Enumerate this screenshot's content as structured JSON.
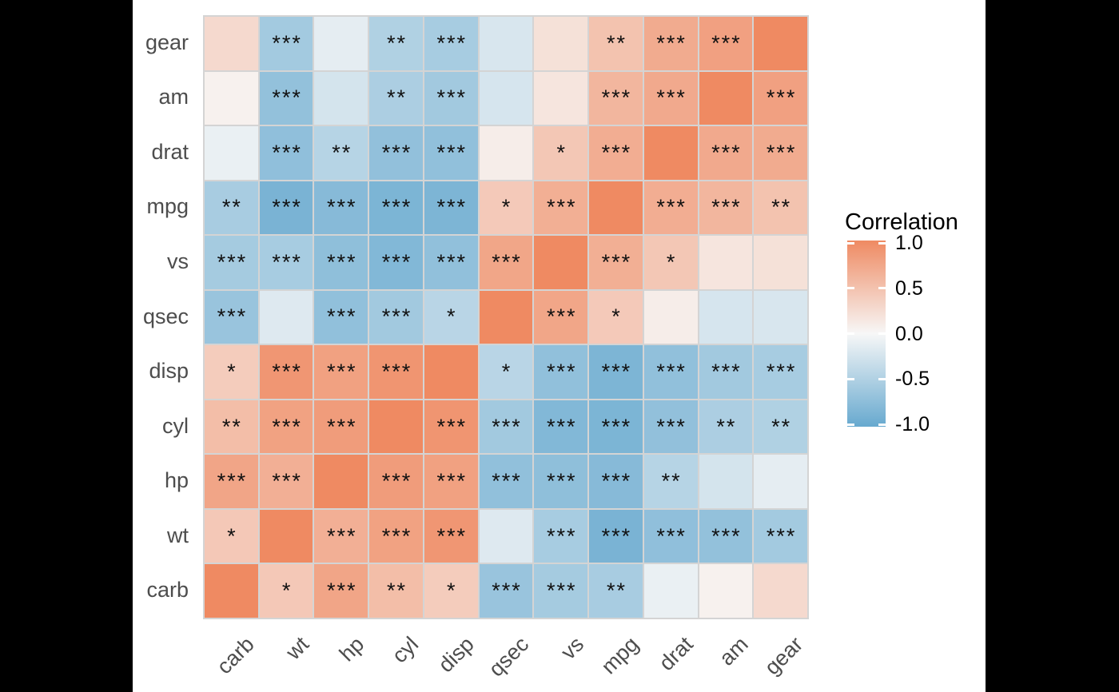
{
  "chart_data": {
    "type": "heatmap",
    "description": "Correlation matrix heatmap of mtcars variables with significance stars",
    "x_categories": [
      "carb",
      "wt",
      "hp",
      "cyl",
      "disp",
      "qsec",
      "vs",
      "mpg",
      "drat",
      "am",
      "gear"
    ],
    "y_categories": [
      "gear",
      "am",
      "drat",
      "mpg",
      "vs",
      "qsec",
      "disp",
      "cyl",
      "hp",
      "wt",
      "carb"
    ],
    "color_scale": {
      "low": "#67A9CF",
      "mid": "#F7F7F7",
      "high": "#EF8A62",
      "limits": [
        -1,
        1
      ]
    },
    "legend": {
      "title": "Correlation",
      "ticks": [
        {
          "label": "1.0",
          "value": 1.0
        },
        {
          "label": "0.5",
          "value": 0.5
        },
        {
          "label": "0.0",
          "value": 0.0
        },
        {
          "label": "-0.5",
          "value": -0.5
        },
        {
          "label": "-1.0",
          "value": -1.0
        }
      ]
    },
    "rows": [
      {
        "y": "gear",
        "cells": [
          {
            "v": 0.274,
            "stars": ""
          },
          {
            "v": -0.583,
            "stars": "***"
          },
          {
            "v": -0.126,
            "stars": ""
          },
          {
            "v": -0.493,
            "stars": "**"
          },
          {
            "v": -0.556,
            "stars": "***"
          },
          {
            "v": -0.213,
            "stars": ""
          },
          {
            "v": 0.206,
            "stars": ""
          },
          {
            "v": 0.48,
            "stars": "**"
          },
          {
            "v": 0.7,
            "stars": "***"
          },
          {
            "v": 0.794,
            "stars": "***"
          },
          {
            "v": 1.0,
            "stars": ""
          }
        ]
      },
      {
        "y": "am",
        "cells": [
          {
            "v": 0.058,
            "stars": ""
          },
          {
            "v": -0.692,
            "stars": "***"
          },
          {
            "v": -0.243,
            "stars": ""
          },
          {
            "v": -0.523,
            "stars": "**"
          },
          {
            "v": -0.591,
            "stars": "***"
          },
          {
            "v": -0.23,
            "stars": ""
          },
          {
            "v": 0.168,
            "stars": ""
          },
          {
            "v": 0.6,
            "stars": "***"
          },
          {
            "v": 0.713,
            "stars": "***"
          },
          {
            "v": 1.0,
            "stars": ""
          },
          {
            "v": 0.794,
            "stars": "***"
          }
        ]
      },
      {
        "y": "drat",
        "cells": [
          {
            "v": -0.091,
            "stars": ""
          },
          {
            "v": -0.712,
            "stars": "***"
          },
          {
            "v": -0.449,
            "stars": "**"
          },
          {
            "v": -0.7,
            "stars": "***"
          },
          {
            "v": -0.71,
            "stars": "***"
          },
          {
            "v": 0.091,
            "stars": ""
          },
          {
            "v": 0.44,
            "stars": "*"
          },
          {
            "v": 0.681,
            "stars": "***"
          },
          {
            "v": 1.0,
            "stars": ""
          },
          {
            "v": 0.713,
            "stars": "***"
          },
          {
            "v": 0.7,
            "stars": "***"
          }
        ]
      },
      {
        "y": "mpg",
        "cells": [
          {
            "v": -0.551,
            "stars": "**"
          },
          {
            "v": -0.868,
            "stars": "***"
          },
          {
            "v": -0.776,
            "stars": "***"
          },
          {
            "v": -0.852,
            "stars": "***"
          },
          {
            "v": -0.848,
            "stars": "***"
          },
          {
            "v": 0.419,
            "stars": "*"
          },
          {
            "v": 0.664,
            "stars": "***"
          },
          {
            "v": 1.0,
            "stars": ""
          },
          {
            "v": 0.681,
            "stars": "***"
          },
          {
            "v": 0.6,
            "stars": "***"
          },
          {
            "v": 0.48,
            "stars": "**"
          }
        ]
      },
      {
        "y": "vs",
        "cells": [
          {
            "v": -0.57,
            "stars": "***"
          },
          {
            "v": -0.555,
            "stars": "***"
          },
          {
            "v": -0.723,
            "stars": "***"
          },
          {
            "v": -0.811,
            "stars": "***"
          },
          {
            "v": -0.71,
            "stars": "***"
          },
          {
            "v": 0.745,
            "stars": "***"
          },
          {
            "v": 1.0,
            "stars": ""
          },
          {
            "v": 0.664,
            "stars": "***"
          },
          {
            "v": 0.44,
            "stars": "*"
          },
          {
            "v": 0.168,
            "stars": ""
          },
          {
            "v": 0.206,
            "stars": ""
          }
        ]
      },
      {
        "y": "qsec",
        "cells": [
          {
            "v": -0.656,
            "stars": "***"
          },
          {
            "v": -0.175,
            "stars": ""
          },
          {
            "v": -0.708,
            "stars": "***"
          },
          {
            "v": -0.591,
            "stars": "***"
          },
          {
            "v": -0.434,
            "stars": "*"
          },
          {
            "v": 1.0,
            "stars": ""
          },
          {
            "v": 0.745,
            "stars": "***"
          },
          {
            "v": 0.419,
            "stars": "*"
          },
          {
            "v": 0.091,
            "stars": ""
          },
          {
            "v": -0.23,
            "stars": ""
          },
          {
            "v": -0.213,
            "stars": ""
          }
        ]
      },
      {
        "y": "disp",
        "cells": [
          {
            "v": 0.395,
            "stars": "*"
          },
          {
            "v": 0.888,
            "stars": "***"
          },
          {
            "v": 0.791,
            "stars": "***"
          },
          {
            "v": 0.902,
            "stars": "***"
          },
          {
            "v": 1.0,
            "stars": ""
          },
          {
            "v": -0.434,
            "stars": "*"
          },
          {
            "v": -0.71,
            "stars": "***"
          },
          {
            "v": -0.848,
            "stars": "***"
          },
          {
            "v": -0.71,
            "stars": "***"
          },
          {
            "v": -0.591,
            "stars": "***"
          },
          {
            "v": -0.556,
            "stars": "***"
          }
        ]
      },
      {
        "y": "cyl",
        "cells": [
          {
            "v": 0.527,
            "stars": "**"
          },
          {
            "v": 0.782,
            "stars": "***"
          },
          {
            "v": 0.832,
            "stars": "***"
          },
          {
            "v": 1.0,
            "stars": ""
          },
          {
            "v": 0.902,
            "stars": "***"
          },
          {
            "v": -0.591,
            "stars": "***"
          },
          {
            "v": -0.811,
            "stars": "***"
          },
          {
            "v": -0.852,
            "stars": "***"
          },
          {
            "v": -0.7,
            "stars": "***"
          },
          {
            "v": -0.523,
            "stars": "**"
          },
          {
            "v": -0.493,
            "stars": "**"
          }
        ]
      },
      {
        "y": "hp",
        "cells": [
          {
            "v": 0.75,
            "stars": "***"
          },
          {
            "v": 0.659,
            "stars": "***"
          },
          {
            "v": 1.0,
            "stars": ""
          },
          {
            "v": 0.832,
            "stars": "***"
          },
          {
            "v": 0.791,
            "stars": "***"
          },
          {
            "v": -0.708,
            "stars": "***"
          },
          {
            "v": -0.723,
            "stars": "***"
          },
          {
            "v": -0.776,
            "stars": "***"
          },
          {
            "v": -0.449,
            "stars": "**"
          },
          {
            "v": -0.243,
            "stars": ""
          },
          {
            "v": -0.126,
            "stars": ""
          }
        ]
      },
      {
        "y": "wt",
        "cells": [
          {
            "v": 0.428,
            "stars": "*"
          },
          {
            "v": 1.0,
            "stars": ""
          },
          {
            "v": 0.659,
            "stars": "***"
          },
          {
            "v": 0.782,
            "stars": "***"
          },
          {
            "v": 0.888,
            "stars": "***"
          },
          {
            "v": -0.175,
            "stars": ""
          },
          {
            "v": -0.555,
            "stars": "***"
          },
          {
            "v": -0.868,
            "stars": "***"
          },
          {
            "v": -0.712,
            "stars": "***"
          },
          {
            "v": -0.692,
            "stars": "***"
          },
          {
            "v": -0.583,
            "stars": "***"
          }
        ]
      },
      {
        "y": "carb",
        "cells": [
          {
            "v": 1.0,
            "stars": ""
          },
          {
            "v": 0.428,
            "stars": "*"
          },
          {
            "v": 0.75,
            "stars": "***"
          },
          {
            "v": 0.527,
            "stars": "**"
          },
          {
            "v": 0.395,
            "stars": "*"
          },
          {
            "v": -0.656,
            "stars": "***"
          },
          {
            "v": -0.57,
            "stars": "***"
          },
          {
            "v": -0.551,
            "stars": "**"
          },
          {
            "v": -0.091,
            "stars": ""
          },
          {
            "v": 0.058,
            "stars": ""
          },
          {
            "v": 0.274,
            "stars": ""
          }
        ]
      }
    ]
  }
}
